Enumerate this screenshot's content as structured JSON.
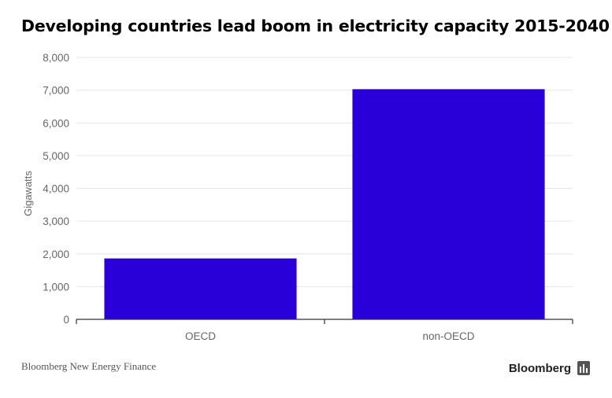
{
  "title": "Developing countries lead boom in electricity capacity 2015-2040",
  "source": "Bloomberg New Energy Finance",
  "brand": {
    "name": "Bloomberg",
    "icon": "bloomberg-chart-icon"
  },
  "colors": {
    "bar": "#2a00d9",
    "grid": "#e6e6e6",
    "axis": "#333333",
    "tick_text": "#666666"
  },
  "chart_data": {
    "type": "bar",
    "title": "Developing countries lead boom in electricity capacity 2015-2040",
    "categories": [
      "OECD",
      "non-OECD"
    ],
    "values": [
      1860,
      7030
    ],
    "xlabel": "",
    "ylabel": "Gigawatts",
    "ylim": [
      0,
      8000
    ],
    "yticks": [
      0,
      1000,
      2000,
      3000,
      4000,
      5000,
      6000,
      7000,
      8000
    ],
    "ytick_labels": [
      "0",
      "1,000",
      "2,000",
      "3,000",
      "4,000",
      "5,000",
      "6,000",
      "7,000",
      "8,000"
    ],
    "grid": true,
    "legend": "none"
  }
}
